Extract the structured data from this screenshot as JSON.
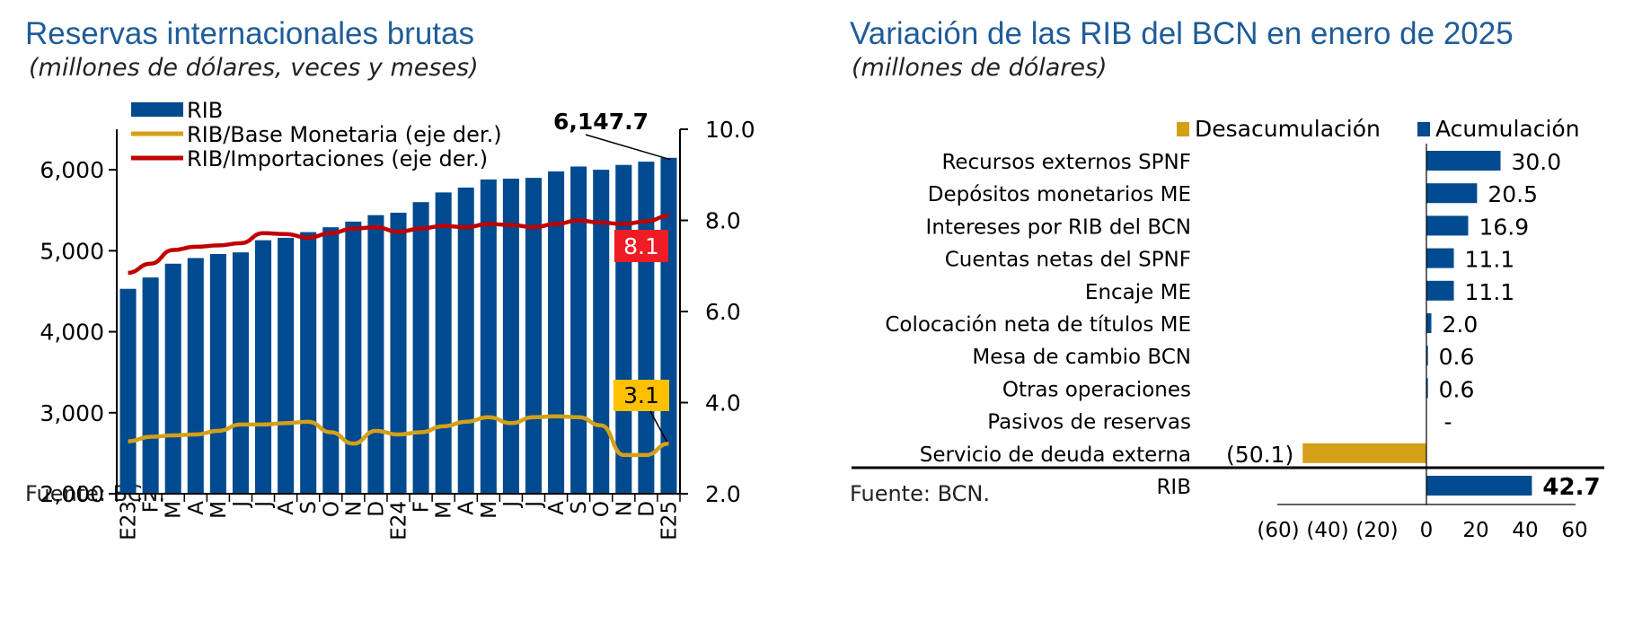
{
  "left": {
    "title": "Reservas internacionales brutas",
    "subtitle": "(millones de dólares, veces y meses)",
    "source": "Fuente: BCN.",
    "legend": [
      "RIB",
      "RIB/Base Monetaria (eje der.)",
      "RIB/Importaciones (eje der.)"
    ],
    "colors": {
      "bar": "#004a8f",
      "base": "#d4a017",
      "imports": "#c00000",
      "label_red": "#ee1c25",
      "label_yellow": "#ffc000"
    },
    "callouts": {
      "last_rib": "6,147.7",
      "last_imports": "8.1",
      "last_base": "3.1"
    },
    "chart_data": {
      "type": "bar",
      "categories": [
        "E23",
        "F",
        "M",
        "A",
        "M",
        "J",
        "J",
        "A",
        "S",
        "O",
        "N",
        "D",
        "E24",
        "F",
        "M",
        "A",
        "M",
        "J",
        "J",
        "A",
        "S",
        "O",
        "N",
        "D",
        "E25"
      ],
      "y_left": {
        "ticks": [
          "2,000",
          "3,000",
          "4,000",
          "5,000",
          "6,000"
        ],
        "ylim": [
          2000,
          6500
        ]
      },
      "y_right": {
        "ticks": [
          "2.0",
          "4.0",
          "6.0",
          "8.0",
          "10.0"
        ],
        "ylim": [
          2.0,
          10.0
        ]
      },
      "series": [
        {
          "name": "RIB",
          "axis": "left",
          "type": "bar",
          "values": [
            4530,
            4670,
            4840,
            4910,
            4960,
            4980,
            5130,
            5160,
            5230,
            5290,
            5360,
            5440,
            5470,
            5600,
            5720,
            5780,
            5880,
            5890,
            5900,
            5980,
            6040,
            6000,
            6060,
            6100,
            6147.7
          ]
        },
        {
          "name": "RIB/Base Monetaria (eje der.)",
          "axis": "right",
          "type": "line",
          "values": [
            3.15,
            3.25,
            3.28,
            3.3,
            3.38,
            3.52,
            3.52,
            3.55,
            3.58,
            3.35,
            3.1,
            3.38,
            3.3,
            3.35,
            3.48,
            3.58,
            3.68,
            3.55,
            3.68,
            3.7,
            3.68,
            3.5,
            2.85,
            2.85,
            3.1
          ]
        },
        {
          "name": "RIB/Importaciones (eje der.)",
          "axis": "right",
          "type": "line",
          "values": [
            6.85,
            7.05,
            7.35,
            7.42,
            7.45,
            7.5,
            7.72,
            7.7,
            7.62,
            7.72,
            7.82,
            7.85,
            7.75,
            7.82,
            7.88,
            7.85,
            7.92,
            7.9,
            7.85,
            7.92,
            8.0,
            7.95,
            7.92,
            7.98,
            8.1
          ]
        }
      ]
    }
  },
  "right": {
    "title": "Variación de las RIB del BCN en enero de 2025",
    "subtitle": "(millones de dólares)",
    "source": "Fuente: BCN.",
    "legend": [
      "Desacumulación",
      "Acumulación"
    ],
    "colors": {
      "acum": "#004a8f",
      "desacum": "#d4a017"
    },
    "chart_data": {
      "type": "bar",
      "orientation": "horizontal",
      "xlim": [
        -60,
        60
      ],
      "x_ticks": [
        "(60)",
        "(40)",
        "(20)",
        "0",
        "20",
        "40",
        "60"
      ],
      "categories": [
        "Recursos externos SPNF",
        "Depósitos monetarios ME",
        "Intereses por RIB del BCN",
        "Cuentas netas del SPNF",
        "Encaje ME",
        "Colocación neta de títulos ME",
        "Mesa de cambio BCN",
        "Otras operaciones",
        "Pasivos de reservas",
        "Servicio de deuda externa",
        "RIB"
      ],
      "values": [
        30.0,
        20.5,
        16.9,
        11.1,
        11.1,
        2.0,
        0.6,
        0.6,
        0,
        -50.1,
        42.7
      ],
      "value_labels": [
        "30.0",
        "20.5",
        "16.9",
        "11.1",
        "11.1",
        "2.0",
        "0.6",
        "0.6",
        "-",
        "(50.1)",
        "42.7"
      ]
    }
  }
}
